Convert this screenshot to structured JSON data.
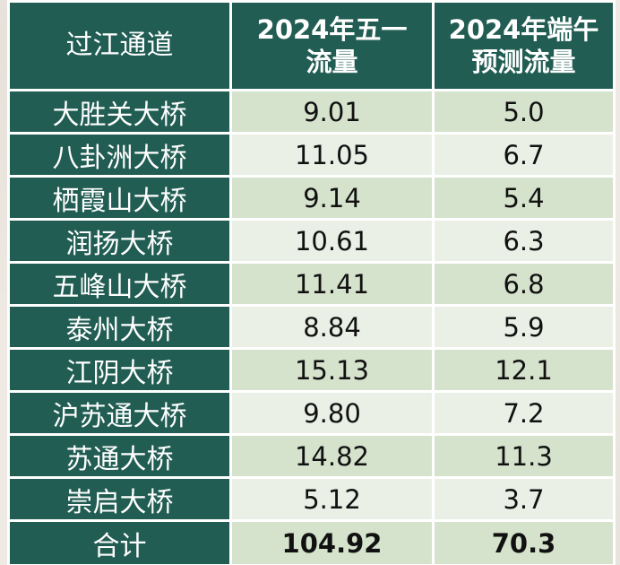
{
  "table": {
    "headers": {
      "col1": "过江通道",
      "col2_line1": "2024年五一",
      "col2_line2": "流量",
      "col3_line1": "2024年端午",
      "col3_line2": "预测流量"
    },
    "rows": [
      {
        "name": "大胜关大桥",
        "may_day": "9.01",
        "dragon_boat": "5.0"
      },
      {
        "name": "八卦洲大桥",
        "may_day": "11.05",
        "dragon_boat": "6.7"
      },
      {
        "name": "栖霞山大桥",
        "may_day": "9.14",
        "dragon_boat": "5.4"
      },
      {
        "name": "润扬大桥",
        "may_day": "10.61",
        "dragon_boat": "6.3"
      },
      {
        "name": "五峰山大桥",
        "may_day": "11.41",
        "dragon_boat": "6.8"
      },
      {
        "name": "泰州大桥",
        "may_day": "8.84",
        "dragon_boat": "5.9"
      },
      {
        "name": "江阴大桥",
        "may_day": "15.13",
        "dragon_boat": "12.1"
      },
      {
        "name": "沪苏通大桥",
        "may_day": "9.80",
        "dragon_boat": "7.2"
      },
      {
        "name": "苏通大桥",
        "may_day": "14.82",
        "dragon_boat": "11.3"
      },
      {
        "name": "崇启大桥",
        "may_day": "5.12",
        "dragon_boat": "3.7"
      }
    ],
    "total": {
      "name": "合计",
      "may_day": "104.92",
      "dragon_boat": "70.3"
    }
  },
  "colors": {
    "header_bg": "#215d53",
    "row_light": "#eaf0e6",
    "row_dark": "#d5e2cc",
    "text_white": "#ffffff"
  }
}
